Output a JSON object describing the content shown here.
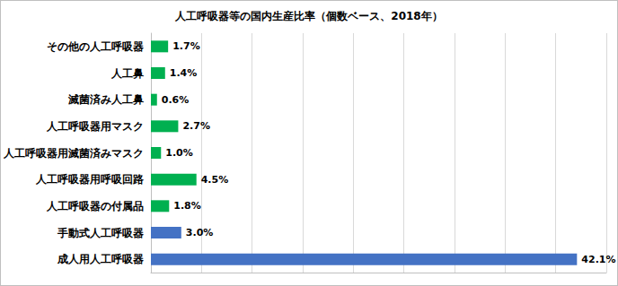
{
  "chart_data": {
    "type": "bar",
    "title": "人工呼吸器等の国内生産比率（個数ベース、2018年）",
    "orientation": "horizontal",
    "categories": [
      "その他の人工呼吸器",
      "人工鼻",
      "滅菌済み人工鼻",
      "人工呼吸器用マスク",
      "人工呼吸器用滅菌済みマスク",
      "人工呼吸器用呼吸回路",
      "人工呼吸器の付属品",
      "手動式人工呼吸器",
      "成人用人工呼吸器"
    ],
    "values": [
      1.7,
      1.4,
      0.6,
      2.7,
      1.0,
      4.5,
      1.8,
      3.0,
      42.1
    ],
    "value_labels": [
      "1.7%",
      "1.4%",
      "0.6%",
      "2.7%",
      "1.0%",
      "4.5%",
      "1.8%",
      "3.0%",
      "42.1%"
    ],
    "colors": [
      "#00b050",
      "#00b050",
      "#00b050",
      "#00b050",
      "#00b050",
      "#00b050",
      "#00b050",
      "#4472c4",
      "#4472c4"
    ],
    "xlim": [
      0,
      45
    ],
    "xticks": [
      0,
      5,
      10,
      15,
      20,
      25,
      30,
      35,
      40,
      45
    ],
    "grid": true,
    "data_labels": true,
    "tick_labels": "y"
  }
}
